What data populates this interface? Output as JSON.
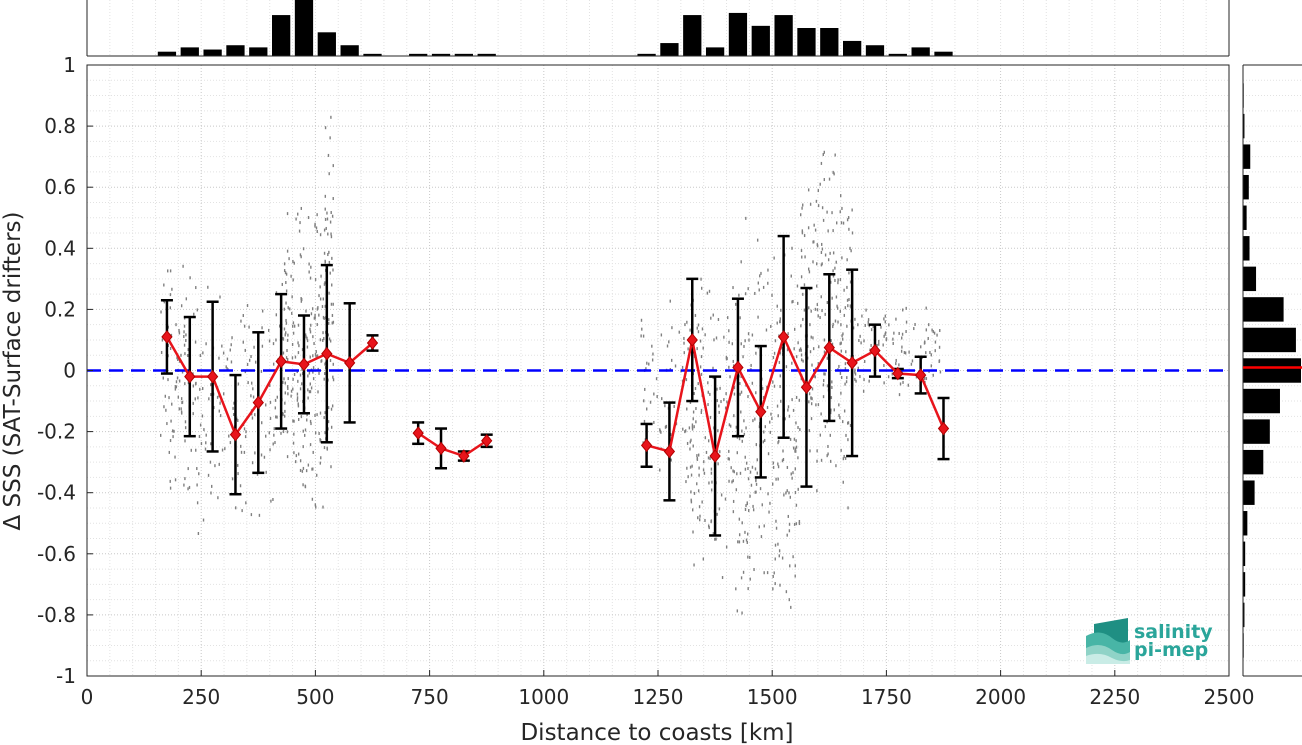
{
  "chart_data": {
    "type": "line",
    "xlabel": "Distance to coasts [km]",
    "ylabel": "Δ SSS (SAT-Surface drifters)",
    "xlim": [
      0,
      2500
    ],
    "ylim": [
      -1,
      1
    ],
    "grid": true,
    "x_ticks": [
      "0",
      "250",
      "500",
      "750",
      "1000",
      "1250",
      "1500",
      "1750",
      "2000",
      "2250",
      "2500"
    ],
    "y_ticks": [
      "-1",
      "-0.8",
      "-0.6",
      "-0.4",
      "-0.2",
      "0",
      "0.2",
      "0.4",
      "0.6",
      "0.8",
      "1"
    ],
    "reference_line": {
      "y": 0,
      "color": "#0000ff",
      "style": "dashed"
    },
    "series": [
      {
        "style": "mean with standard deviation",
        "color": "#e8141b",
        "points": [
          {
            "x": 175,
            "y": 0.11,
            "std": 0.12
          },
          {
            "x": 225,
            "y": -0.02,
            "std": 0.195
          },
          {
            "x": 275,
            "y": -0.02,
            "std": 0.245
          },
          {
            "x": 325,
            "y": -0.21,
            "std": 0.195
          },
          {
            "x": 375,
            "y": -0.105,
            "std": 0.23
          },
          {
            "x": 425,
            "y": 0.03,
            "std": 0.22
          },
          {
            "x": 475,
            "y": 0.02,
            "std": 0.16
          },
          {
            "x": 525,
            "y": 0.055,
            "std": 0.29
          },
          {
            "x": 575,
            "y": 0.025,
            "std": 0.195
          },
          {
            "x": 625,
            "y": 0.09,
            "std": 0.025
          },
          {
            "x": 725,
            "y": -0.205,
            "std": 0.035
          },
          {
            "x": 775,
            "y": -0.255,
            "std": 0.065
          },
          {
            "x": 825,
            "y": -0.28,
            "std": 0.015
          },
          {
            "x": 875,
            "y": -0.23,
            "std": 0.02
          },
          {
            "x": 1225,
            "y": -0.245,
            "std": 0.07
          },
          {
            "x": 1275,
            "y": -0.265,
            "std": 0.16
          },
          {
            "x": 1325,
            "y": 0.1,
            "std": 0.2
          },
          {
            "x": 1375,
            "y": -0.28,
            "std": 0.26
          },
          {
            "x": 1425,
            "y": 0.01,
            "std": 0.225
          },
          {
            "x": 1475,
            "y": -0.135,
            "std": 0.215
          },
          {
            "x": 1525,
            "y": 0.11,
            "std": 0.33
          },
          {
            "x": 1575,
            "y": -0.055,
            "std": 0.325
          },
          {
            "x": 1625,
            "y": 0.075,
            "std": 0.24
          },
          {
            "x": 1675,
            "y": 0.025,
            "std": 0.305
          },
          {
            "x": 1725,
            "y": 0.065,
            "std": 0.085
          },
          {
            "x": 1775,
            "y": -0.01,
            "std": 0.015
          },
          {
            "x": 1825,
            "y": -0.015,
            "std": 0.06
          },
          {
            "x": 1875,
            "y": -0.19,
            "std": 0.1
          }
        ]
      }
    ],
    "scatter_samples": {
      "color": "#808080",
      "clusters": [
        {
          "x": [
            160,
            240
          ],
          "y": [
            -0.4,
            0.35
          ],
          "n": 110
        },
        {
          "x": [
            240,
            420
          ],
          "y": [
            -0.55,
            0.3
          ],
          "n": 160
        },
        {
          "x": [
            420,
            530
          ],
          "y": [
            -0.45,
            0.55
          ],
          "n": 260
        },
        {
          "x": [
            520,
            540
          ],
          "y": [
            -0.4,
            0.85
          ],
          "n": 60
        },
        {
          "x": [
            1210,
            1330
          ],
          "y": [
            -0.45,
            0.25
          ],
          "n": 80
        },
        {
          "x": [
            1320,
            1420
          ],
          "y": [
            -0.7,
            0.3
          ],
          "n": 160
        },
        {
          "x": [
            1420,
            1560
          ],
          "y": [
            -0.85,
            0.5
          ],
          "n": 260
        },
        {
          "x": [
            1560,
            1680
          ],
          "y": [
            -0.45,
            0.78
          ],
          "n": 240
        },
        {
          "x": [
            1680,
            1870
          ],
          "y": [
            -0.1,
            0.25
          ],
          "n": 110
        }
      ]
    },
    "top_histogram": {
      "color": "#000000",
      "bins": [
        {
          "x": 175,
          "count": 2
        },
        {
          "x": 225,
          "count": 4
        },
        {
          "x": 275,
          "count": 3
        },
        {
          "x": 325,
          "count": 5
        },
        {
          "x": 375,
          "count": 4
        },
        {
          "x": 425,
          "count": 19
        },
        {
          "x": 475,
          "count": 26
        },
        {
          "x": 525,
          "count": 11
        },
        {
          "x": 575,
          "count": 5
        },
        {
          "x": 625,
          "count": 1
        },
        {
          "x": 725,
          "count": 1
        },
        {
          "x": 775,
          "count": 1
        },
        {
          "x": 825,
          "count": 1
        },
        {
          "x": 875,
          "count": 1
        },
        {
          "x": 1225,
          "count": 1
        },
        {
          "x": 1275,
          "count": 6
        },
        {
          "x": 1325,
          "count": 19
        },
        {
          "x": 1375,
          "count": 4
        },
        {
          "x": 1425,
          "count": 20
        },
        {
          "x": 1475,
          "count": 14
        },
        {
          "x": 1525,
          "count": 19
        },
        {
          "x": 1575,
          "count": 13
        },
        {
          "x": 1625,
          "count": 13
        },
        {
          "x": 1675,
          "count": 7
        },
        {
          "x": 1725,
          "count": 5
        },
        {
          "x": 1775,
          "count": 1
        },
        {
          "x": 1825,
          "count": 4
        },
        {
          "x": 1875,
          "count": 2
        }
      ]
    },
    "right_histogram": {
      "color": "#000000",
      "mean_marker": {
        "y": 0.01,
        "color": "#ff0000"
      },
      "bins": [
        {
          "y": 0.9,
          "count": 1
        },
        {
          "y": 0.8,
          "count": 2
        },
        {
          "y": 0.7,
          "count": 10
        },
        {
          "y": 0.6,
          "count": 8
        },
        {
          "y": 0.5,
          "count": 5
        },
        {
          "y": 0.4,
          "count": 9
        },
        {
          "y": 0.3,
          "count": 18
        },
        {
          "y": 0.2,
          "count": 56
        },
        {
          "y": 0.1,
          "count": 73
        },
        {
          "y": 0.0,
          "count": 80
        },
        {
          "y": -0.1,
          "count": 51
        },
        {
          "y": -0.2,
          "count": 37
        },
        {
          "y": -0.3,
          "count": 28
        },
        {
          "y": -0.4,
          "count": 16
        },
        {
          "y": -0.5,
          "count": 6
        },
        {
          "y": -0.6,
          "count": 3
        },
        {
          "y": -0.7,
          "count": 3
        },
        {
          "y": -0.8,
          "count": 2
        },
        {
          "y": -0.9,
          "count": 1
        }
      ]
    }
  },
  "logo": {
    "line1": "salinity",
    "line2": "pi-mep"
  }
}
